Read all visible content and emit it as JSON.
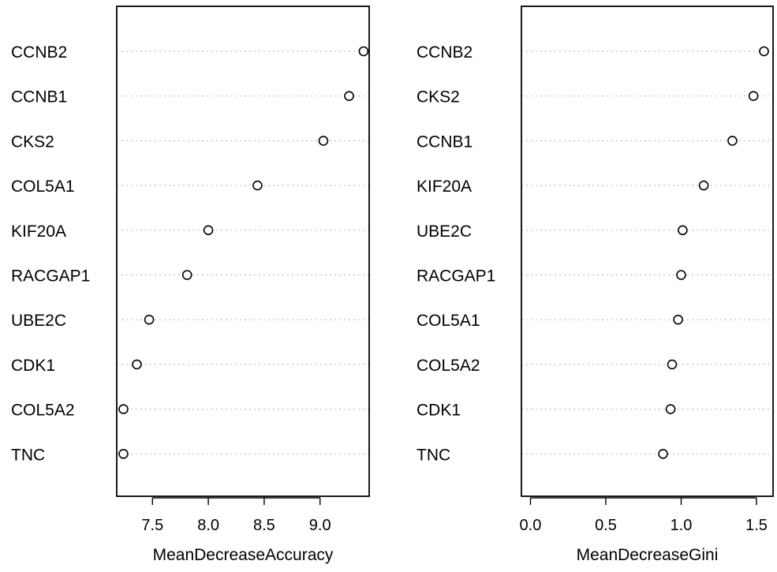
{
  "chart_data": [
    {
      "type": "scatter",
      "subtype": "dotchart",
      "xlabel": "MeanDecreaseAccuracy",
      "xticks": [
        "7.5",
        "8.0",
        "8.5",
        "9.0"
      ],
      "xlim": [
        7.18,
        9.44
      ],
      "labels": [
        "CCNB2",
        "CCNB1",
        "CKS2",
        "COL5A1",
        "KIF20A",
        "RACGAP1",
        "UBE2C",
        "CDK1",
        "COL5A2",
        "TNC"
      ],
      "values": [
        9.39,
        9.26,
        9.03,
        8.44,
        8.0,
        7.81,
        7.47,
        7.36,
        7.24,
        7.24
      ]
    },
    {
      "type": "scatter",
      "subtype": "dotchart",
      "xlabel": "MeanDecreaseGini",
      "xticks": [
        "0.0",
        "0.5",
        "1.0",
        "1.5"
      ],
      "xlim": [
        -0.06,
        1.61
      ],
      "labels": [
        "CCNB2",
        "CKS2",
        "CCNB1",
        "KIF20A",
        "UBE2C",
        "RACGAP1",
        "COL5A1",
        "COL5A2",
        "CDK1",
        "TNC"
      ],
      "values": [
        1.55,
        1.48,
        1.34,
        1.15,
        1.01,
        1.0,
        0.98,
        0.94,
        0.93,
        0.88
      ]
    }
  ]
}
